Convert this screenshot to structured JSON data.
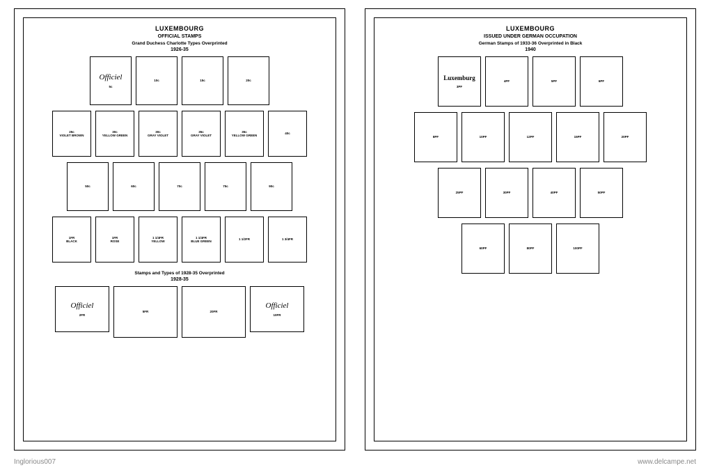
{
  "credit_left": "Inglorious007",
  "credit_right": "www.delcampe.net",
  "pages": {
    "left": {
      "title": "LUXEMBOURG",
      "subtitle": "OFFICIAL STAMPS",
      "desc": "Grand Duchess Charlotte Types Overprinted",
      "year": "1926-35",
      "section2_title": "Stamps and Types of 1928-35 Overprinted",
      "section2_year": "1928-35",
      "overprint_text": "Officiel",
      "rows": [
        [
          {
            "top": "Officiel",
            "label": "5c"
          },
          {
            "label": "10c"
          },
          {
            "label": "15c"
          },
          {
            "label": "20c"
          }
        ],
        [
          {
            "label": "25c",
            "sub": "VIOLET BROWN"
          },
          {
            "label": "30c",
            "sub": "YELLOW GREEN"
          },
          {
            "label": "30c",
            "sub": "GRAY VIOLET"
          },
          {
            "label": "35c",
            "sub": "GRAY VIOLET"
          },
          {
            "label": "35c",
            "sub": "YELLOW GREEN"
          },
          {
            "label": "40c"
          }
        ],
        [
          {
            "label": "50c"
          },
          {
            "label": "60c"
          },
          {
            "label": "70c"
          },
          {
            "label": "75c"
          },
          {
            "label": "90c"
          }
        ],
        [
          {
            "label": "1FR",
            "sub": "BLACK"
          },
          {
            "label": "1FR",
            "sub": "ROSE"
          },
          {
            "label": "1 1/4FR",
            "sub": "YELLOW"
          },
          {
            "label": "1 1/4FR",
            "sub": "BLUE GREEN"
          },
          {
            "label": "1 1/2FR"
          },
          {
            "label": "1 3/4FR"
          }
        ]
      ],
      "row5": [
        {
          "top": "Officiel",
          "label": "2FR"
        },
        {
          "label": "5FR"
        },
        {
          "label": "20FR"
        },
        {
          "top": "Officiel",
          "label": "10FR"
        }
      ]
    },
    "right": {
      "title": "LUXEMBOURG",
      "subtitle": "ISSUED UNDER GERMAN OCCUPATION",
      "desc": "German Stamps of 1933-36 Overprinted in Black",
      "year": "1940",
      "overprint_text": "Luxemburg",
      "rows": [
        [
          {
            "top": "Luxemburg",
            "label": "3PF"
          },
          {
            "label": "4PF"
          },
          {
            "label": "5PF"
          },
          {
            "label": "6PF"
          }
        ],
        [
          {
            "label": "8PF"
          },
          {
            "label": "10PF"
          },
          {
            "label": "12PF"
          },
          {
            "label": "15PF"
          },
          {
            "label": "20PF"
          }
        ],
        [
          {
            "label": "25PF"
          },
          {
            "label": "30PF"
          },
          {
            "label": "40PF"
          },
          {
            "label": "50PF"
          }
        ],
        [
          {
            "label": "60PF"
          },
          {
            "label": "80PF"
          },
          {
            "label": "100PF"
          }
        ]
      ]
    }
  }
}
